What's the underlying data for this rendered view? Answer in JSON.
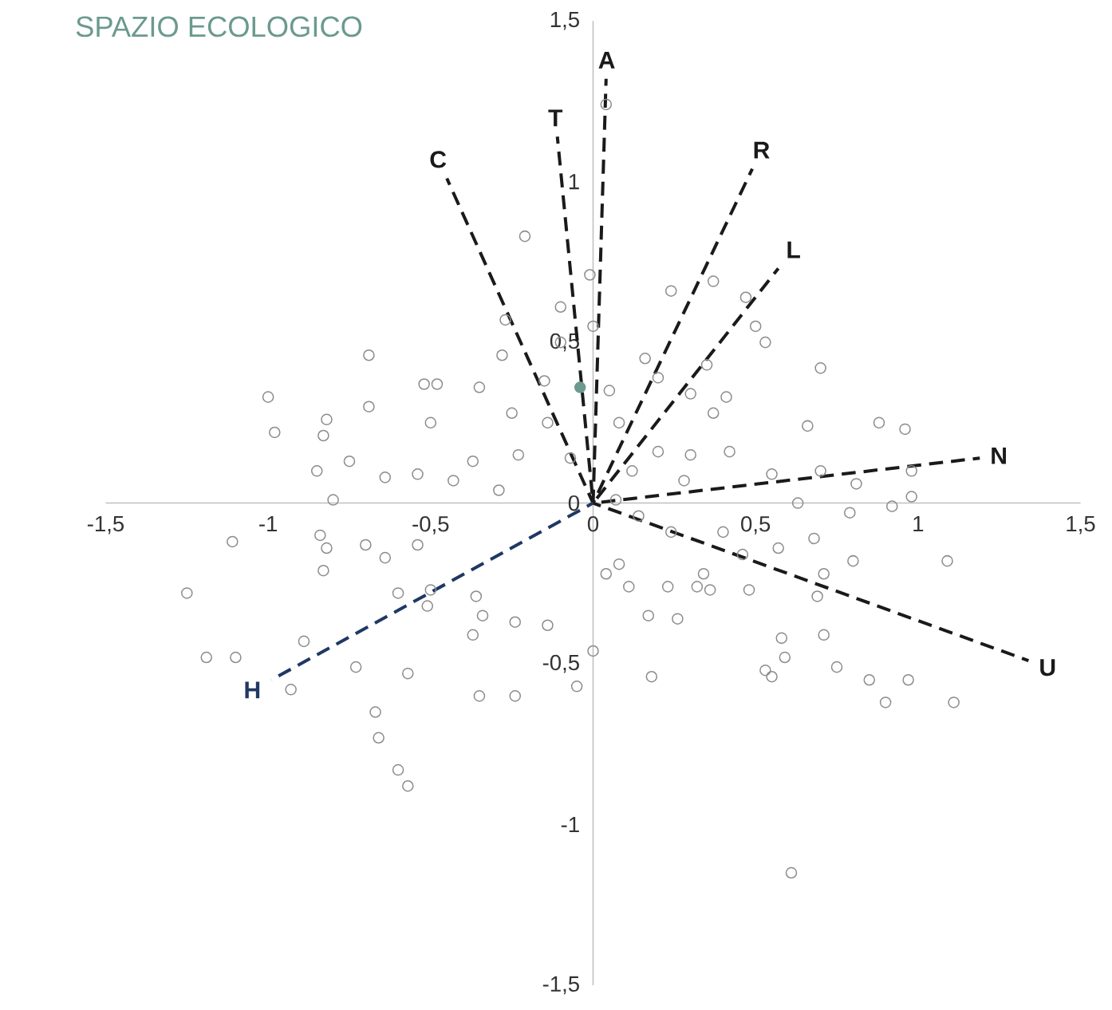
{
  "chart_data": {
    "type": "scatter",
    "title": "SPAZIO ECOLOGICO",
    "xlim": [
      -1.5,
      1.5
    ],
    "ylim": [
      -1.5,
      1.5
    ],
    "xticks": [
      {
        "value": -1.5,
        "label": "-1,5"
      },
      {
        "value": -1,
        "label": "-1"
      },
      {
        "value": -0.5,
        "label": "-0,5"
      },
      {
        "value": 0,
        "label": "0"
      },
      {
        "value": 0.5,
        "label": "0,5"
      },
      {
        "value": 1,
        "label": "1"
      },
      {
        "value": 1.5,
        "label": "1,5"
      }
    ],
    "yticks": [
      {
        "value": -1.5,
        "label": "-1,5"
      },
      {
        "value": -1,
        "label": "-1"
      },
      {
        "value": -0.5,
        "label": "-0,5"
      },
      {
        "value": 0,
        "label": "0"
      },
      {
        "value": 0.5,
        "label": "0,5"
      },
      {
        "value": 1,
        "label": "1"
      },
      {
        "value": 1.5,
        "label": "1,5"
      }
    ],
    "series": [
      {
        "color": "#8c8c8c",
        "marker": "circle",
        "x": [
          0.04,
          -0.21,
          -0.01,
          0.24,
          0.37,
          0.47,
          -0.1,
          -0.27,
          0,
          -0.1,
          0.5,
          0.53,
          -0.69,
          -0.28,
          0.16,
          0.35,
          0.7,
          -0.52,
          -0.48,
          -1.0,
          -0.35,
          -0.15,
          0.05,
          0.2,
          0.3,
          0.41,
          -0.69,
          0.37,
          -0.82,
          -0.98,
          -0.25,
          0.88,
          0.96,
          0.66,
          -0.83,
          -0.5,
          -0.14,
          0.08,
          -0.75,
          -0.64,
          -0.85,
          -0.54,
          -0.37,
          -0.23,
          -0.07,
          0.2,
          0.3,
          0.42,
          0.55,
          0.7,
          0.81,
          0.98,
          0.28,
          0.12,
          -0.8,
          -0.29,
          -0.43,
          0.92,
          0.98,
          0.63,
          0.79,
          -1.11,
          -0.84,
          -0.82,
          -0.7,
          -0.64,
          -0.54,
          -0.83,
          -1.25,
          -0.6,
          -0.5,
          -0.89,
          -0.36,
          -0.34,
          -0.24,
          -0.37,
          -0.14,
          0,
          -0.51,
          -1.19,
          -1.1,
          -0.93,
          -0.73,
          -0.57,
          -0.67,
          -0.66,
          -0.6,
          -0.57,
          -0.35,
          -0.24,
          -0.05,
          0.08,
          0.04,
          0.11,
          0.17,
          0.26,
          0.32,
          0.36,
          0.18,
          0.48,
          0.55,
          0.34,
          0.4,
          0.46,
          0.57,
          0.68,
          0.71,
          0.69,
          0.58,
          0.59,
          0.53,
          0.75,
          0.85,
          0.9,
          0.97,
          1.11,
          1.09,
          0.61,
          0.8,
          0.71,
          0.23,
          0.24,
          0.14,
          0.07
        ],
        "values": [
          1.24,
          0.83,
          0.71,
          0.66,
          0.69,
          0.64,
          0.61,
          0.57,
          0.55,
          0.5,
          0.55,
          0.5,
          0.46,
          0.46,
          0.45,
          0.43,
          0.42,
          0.37,
          0.37,
          0.33,
          0.36,
          0.38,
          0.35,
          0.39,
          0.34,
          0.33,
          0.3,
          0.28,
          0.26,
          0.22,
          0.28,
          0.25,
          0.23,
          0.24,
          0.21,
          0.25,
          0.25,
          0.25,
          0.13,
          0.08,
          0.1,
          0.09,
          0.13,
          0.15,
          0.14,
          0.16,
          0.15,
          0.16,
          0.09,
          0.1,
          0.06,
          0.1,
          0.07,
          0.1,
          0.01,
          0.04,
          0.07,
          -0.01,
          0.02,
          0,
          -0.03,
          -0.12,
          -0.1,
          -0.14,
          -0.13,
          -0.17,
          -0.13,
          -0.21,
          -0.28,
          -0.28,
          -0.27,
          -0.43,
          -0.29,
          -0.35,
          -0.37,
          -0.41,
          -0.38,
          -0.46,
          -0.32,
          -0.48,
          -0.48,
          -0.58,
          -0.51,
          -0.53,
          -0.65,
          -0.73,
          -0.83,
          -0.88,
          -0.6,
          -0.6,
          -0.57,
          -0.19,
          -0.22,
          -0.26,
          -0.35,
          -0.36,
          -0.26,
          -0.27,
          -0.54,
          -0.27,
          -0.54,
          -0.22,
          -0.09,
          -0.16,
          -0.14,
          -0.11,
          -0.22,
          -0.29,
          -0.42,
          -0.48,
          -0.52,
          -0.51,
          -0.55,
          -0.62,
          -0.55,
          -0.62,
          -0.18,
          -1.15,
          -0.18,
          -0.41,
          -0.26,
          -0.09,
          -0.04,
          0.01
        ]
      },
      {
        "color": "#6b9a8e",
        "marker": "circle",
        "x": [
          -0.04
        ],
        "values": [
          0.36
        ]
      },
      {
        "type": "line",
        "name": "C",
        "color": "#1a1a1a",
        "line_style": "dashed",
        "marker": "none",
        "x": [
          0,
          -0.45
        ],
        "values": [
          0,
          1.01
        ]
      },
      {
        "type": "line",
        "name": "T",
        "color": "#1a1a1a",
        "line_style": "dashed",
        "marker": "none",
        "x": [
          0,
          -0.11
        ],
        "values": [
          0,
          1.14
        ]
      },
      {
        "type": "line",
        "name": "A",
        "color": "#1a1a1a",
        "line_style": "dashed",
        "marker": "none",
        "x": [
          0,
          0.04
        ],
        "values": [
          0,
          1.32
        ]
      },
      {
        "type": "line",
        "name": "R",
        "color": "#1a1a1a",
        "line_style": "dashed",
        "marker": "none",
        "x": [
          0,
          0.49
        ],
        "values": [
          0,
          1.04
        ]
      },
      {
        "type": "line",
        "name": "L",
        "color": "#1a1a1a",
        "line_style": "dashed",
        "marker": "none",
        "x": [
          0,
          0.57
        ],
        "values": [
          0,
          0.73
        ]
      },
      {
        "type": "line",
        "name": "N",
        "color": "#1a1a1a",
        "line_style": "dashed",
        "marker": "none",
        "x": [
          0,
          1.19
        ],
        "values": [
          0,
          0.14
        ]
      },
      {
        "type": "line",
        "name": "U",
        "color": "#1a1a1a",
        "line_style": "dashed",
        "marker": "none",
        "x": [
          0,
          1.34
        ],
        "values": [
          0,
          -0.49
        ]
      },
      {
        "type": "line",
        "name": "H",
        "color": "#1f3864",
        "line_style": "dashed",
        "marker": "none",
        "x": [
          -0.99,
          0
        ],
        "values": [
          -0.55,
          0
        ]
      }
    ]
  }
}
